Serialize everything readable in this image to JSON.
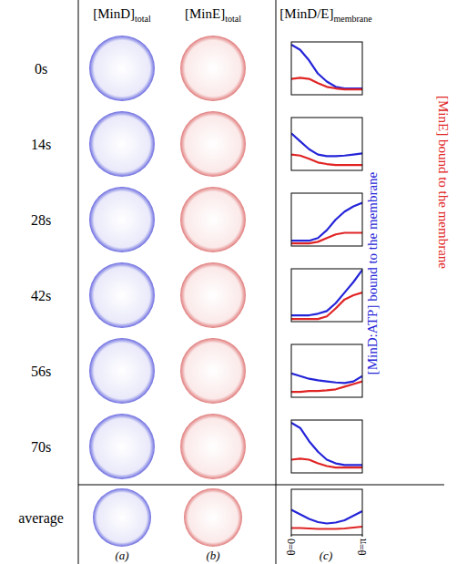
{
  "header": {
    "columns": [
      {
        "main": "[MinD]",
        "sub": "total"
      },
      {
        "main": "[MinE]",
        "sub": "total"
      },
      {
        "main": "[MinD/E]",
        "sub": "membrane"
      }
    ]
  },
  "rows": [
    "0s",
    "14s",
    "28s",
    "42s",
    "56s",
    "70s",
    "average"
  ],
  "panel_letters": [
    "(a)",
    "(b)",
    "(c)"
  ],
  "axis_labels": [
    {
      "text": "[MinD:ATP] bound to the membrane",
      "color": "#2424d8"
    },
    {
      "text": "[MinE] bound to the membrane",
      "color": "#e02424"
    }
  ],
  "chart_data": [
    {
      "type": "line",
      "x": [
        0,
        0.3927,
        0.7854,
        1.1781,
        1.5708,
        1.9635,
        2.3562,
        2.7489,
        3.1416
      ],
      "xlim": [
        0,
        3.1416
      ],
      "ylim": [
        0,
        1
      ],
      "tick_labels": false,
      "series": [
        {
          "color": "#2424d8",
          "values": [
            0.95,
            0.85,
            0.65,
            0.4,
            0.25,
            0.15,
            0.12,
            0.12,
            0.12
          ]
        },
        {
          "color": "#e02424",
          "values": [
            0.3,
            0.32,
            0.3,
            0.22,
            0.15,
            0.12,
            0.1,
            0.1,
            0.1
          ]
        }
      ]
    },
    {
      "type": "line",
      "x": [
        0,
        0.3927,
        0.7854,
        1.1781,
        1.5708,
        1.9635,
        2.3562,
        2.7489,
        3.1416
      ],
      "xlim": [
        0,
        3.1416
      ],
      "ylim": [
        0,
        1
      ],
      "tick_labels": false,
      "series": [
        {
          "color": "#2424d8",
          "values": [
            0.7,
            0.55,
            0.4,
            0.3,
            0.27,
            0.27,
            0.28,
            0.3,
            0.32
          ]
        },
        {
          "color": "#e02424",
          "values": [
            0.3,
            0.28,
            0.22,
            0.15,
            0.12,
            0.1,
            0.1,
            0.1,
            0.1
          ]
        }
      ]
    },
    {
      "type": "line",
      "x": [
        0,
        0.3927,
        0.7854,
        1.1781,
        1.5708,
        1.9635,
        2.3562,
        2.7489,
        3.1416
      ],
      "xlim": [
        0,
        3.1416
      ],
      "ylim": [
        0,
        1
      ],
      "tick_labels": false,
      "series": [
        {
          "color": "#2424d8",
          "values": [
            0.1,
            0.1,
            0.1,
            0.15,
            0.3,
            0.5,
            0.65,
            0.75,
            0.82
          ]
        },
        {
          "color": "#e02424",
          "values": [
            0.05,
            0.05,
            0.05,
            0.08,
            0.15,
            0.22,
            0.25,
            0.25,
            0.25
          ]
        }
      ]
    },
    {
      "type": "line",
      "x": [
        0,
        0.3927,
        0.7854,
        1.1781,
        1.5708,
        1.9635,
        2.3562,
        2.7489,
        3.1416
      ],
      "xlim": [
        0,
        3.1416
      ],
      "ylim": [
        0,
        1
      ],
      "tick_labels": false,
      "series": [
        {
          "color": "#2424d8",
          "values": [
            0.12,
            0.12,
            0.12,
            0.15,
            0.2,
            0.35,
            0.55,
            0.75,
            0.98
          ]
        },
        {
          "color": "#e02424",
          "values": [
            0.05,
            0.05,
            0.05,
            0.05,
            0.1,
            0.25,
            0.42,
            0.5,
            0.55
          ]
        }
      ]
    },
    {
      "type": "line",
      "x": [
        0,
        0.3927,
        0.7854,
        1.1781,
        1.5708,
        1.9635,
        2.3562,
        2.7489,
        3.1416
      ],
      "xlim": [
        0,
        3.1416
      ],
      "ylim": [
        0,
        1
      ],
      "tick_labels": false,
      "series": [
        {
          "color": "#2424d8",
          "values": [
            0.45,
            0.4,
            0.35,
            0.32,
            0.3,
            0.28,
            0.27,
            0.3,
            0.4
          ]
        },
        {
          "color": "#e02424",
          "values": [
            0.1,
            0.1,
            0.12,
            0.12,
            0.13,
            0.15,
            0.2,
            0.25,
            0.3
          ]
        }
      ]
    },
    {
      "type": "line",
      "x": [
        0,
        0.3927,
        0.7854,
        1.1781,
        1.5708,
        1.9635,
        2.3562,
        2.7489,
        3.1416
      ],
      "xlim": [
        0,
        3.1416
      ],
      "ylim": [
        0,
        1
      ],
      "tick_labels": false,
      "series": [
        {
          "color": "#2424d8",
          "values": [
            0.95,
            0.85,
            0.6,
            0.4,
            0.25,
            0.18,
            0.15,
            0.15,
            0.15
          ]
        },
        {
          "color": "#e02424",
          "values": [
            0.25,
            0.27,
            0.25,
            0.18,
            0.13,
            0.1,
            0.1,
            0.1,
            0.1
          ]
        }
      ]
    },
    {
      "type": "line",
      "x": [
        0,
        0.3927,
        0.7854,
        1.1781,
        1.5708,
        1.9635,
        2.3562,
        2.7489,
        3.1416
      ],
      "xlim": [
        0,
        3.1416
      ],
      "ylim": [
        0,
        1
      ],
      "tick_labels": "x",
      "xticks": [
        {
          "value": 0,
          "label": "θ=0"
        },
        {
          "value": 3.1416,
          "label": "θ=π"
        }
      ],
      "series": [
        {
          "color": "#2424d8",
          "values": [
            0.55,
            0.45,
            0.35,
            0.28,
            0.25,
            0.27,
            0.32,
            0.42,
            0.52
          ]
        },
        {
          "color": "#e02424",
          "values": [
            0.15,
            0.15,
            0.14,
            0.13,
            0.13,
            0.13,
            0.14,
            0.16,
            0.18
          ]
        }
      ]
    }
  ]
}
